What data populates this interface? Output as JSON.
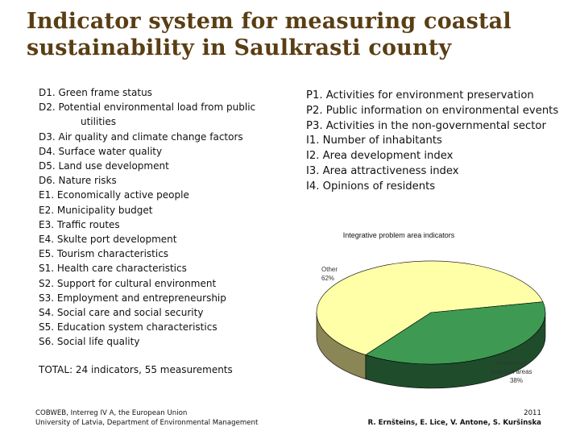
{
  "title": {
    "line1": "Indicator system for measuring coastal",
    "line2": "sustainability in Saulkrasti county"
  },
  "left_list": [
    {
      "text": "D1. Green frame status",
      "indent": false
    },
    {
      "text": "D2. Potential environmental load from public",
      "indent": false
    },
    {
      "text": "utilities",
      "indent": true
    },
    {
      "text": "D3. Air quality and climate change factors",
      "indent": false
    },
    {
      "text": "D4. Surface water quality",
      "indent": false
    },
    {
      "text": "D5. Land use development",
      "indent": false
    },
    {
      "text": "D6. Nature risks",
      "indent": false
    },
    {
      "text": "E1. Economically active people",
      "indent": false
    },
    {
      "text": "E2. Municipality budget",
      "indent": false
    },
    {
      "text": "E3. Traffic routes",
      "indent": false
    },
    {
      "text": "E4. Skulte port development",
      "indent": false
    },
    {
      "text": "E5. Tourism characteristics",
      "indent": false
    },
    {
      "text": "S1. Health care characteristics",
      "indent": false
    },
    {
      "text": "S2. Support for cultural environment",
      "indent": false
    },
    {
      "text": "S3. Employment and entrepreneurship",
      "indent": false
    },
    {
      "text": "S4. Social care and social security",
      "indent": false
    },
    {
      "text": "S5. Education system characteristics",
      "indent": false
    },
    {
      "text": "S6. Social life quality",
      "indent": false
    }
  ],
  "right_list": [
    "P1. Activities for environment preservation",
    "P2. Public information on environmental events",
    "P3. Activities in the non-governmental sector",
    "I1. Number of inhabitants",
    "I2. Area development index",
    "I3. Area attractiveness index",
    "I4. Opinions of residents"
  ],
  "total": "TOTAL: 24 indicators, 55 measurements",
  "footer": {
    "left_line1": "COBWEB, Interreg IV A, the European Union",
    "left_line2": "University of Latvia, Department of Environmental Management",
    "year": "2011",
    "authors": "R. Ernšteins, E. Lice, V. Antone, S. Kuršinska"
  },
  "colors": {
    "title": "#5a3e14",
    "other_slice": "#ffffa8",
    "other_slice_side": "#8a8656",
    "integrative_slice": "#3e9a52",
    "integrative_slice_side": "#1f4d2c"
  },
  "chart_data": {
    "type": "pie",
    "title": "Integrative problem area indicators",
    "slices": [
      {
        "label": "Other",
        "value": 62,
        "value_label": "62%",
        "color": "#ffffa8",
        "side_color": "#8a8656"
      },
      {
        "label": "Integrative problem areas",
        "value": 38,
        "value_label": "38%",
        "color": "#3e9a52",
        "side_color": "#1f4d2c"
      }
    ]
  }
}
